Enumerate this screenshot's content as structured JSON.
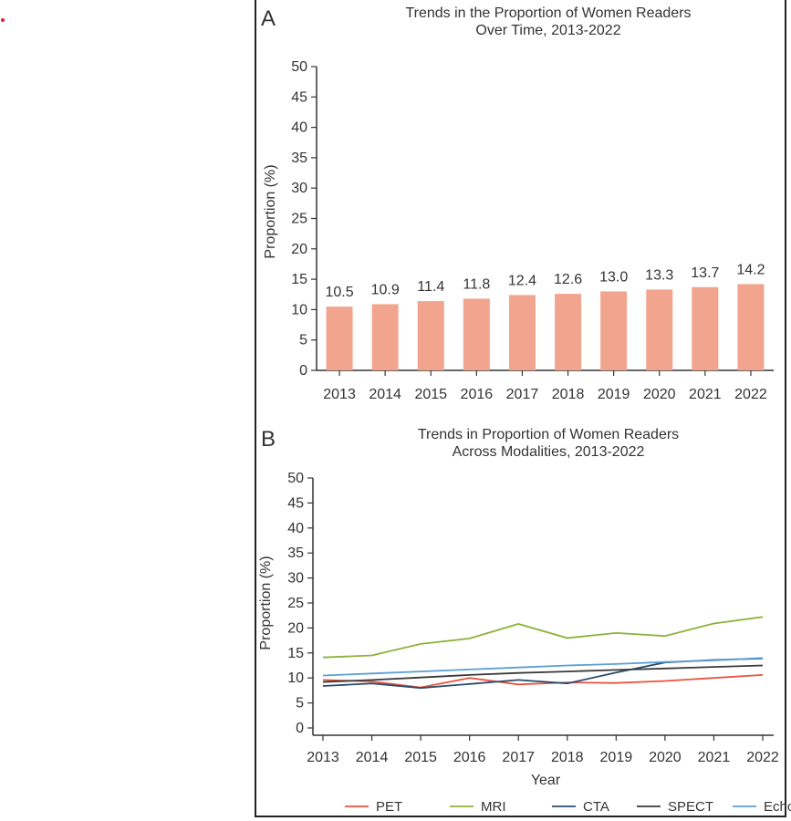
{
  "panel_a": {
    "letter": "A"
  },
  "panel_b": {
    "letter": "B"
  },
  "chart_data": [
    {
      "type": "bar",
      "title": "Trends in the Proportion of Women Readers",
      "subtitle": "Over Time, 2013-2022",
      "xlabel": "",
      "ylabel": "Proportion (%)",
      "ylim": [
        0,
        50
      ],
      "yticks": [
        0,
        5,
        10,
        15,
        20,
        25,
        30,
        35,
        40,
        45,
        50
      ],
      "categories": [
        "2013",
        "2014",
        "2015",
        "2016",
        "2017",
        "2018",
        "2019",
        "2020",
        "2021",
        "2022"
      ],
      "values": [
        10.5,
        10.9,
        11.4,
        11.8,
        12.4,
        12.6,
        13.0,
        13.3,
        13.7,
        14.2
      ],
      "labels": [
        "10.5",
        "10.9",
        "11.4",
        "11.8",
        "12.4",
        "12.6",
        "13.0",
        "13.3",
        "13.7",
        "14.2"
      ],
      "color": "#f2a58e"
    },
    {
      "type": "line",
      "title": "Trends in Proportion of Women Readers",
      "subtitle": "Across Modalities, 2013-2022",
      "xlabel": "Year",
      "ylabel": "Proportion (%)",
      "ylim": [
        0,
        50
      ],
      "yticks": [
        0,
        5,
        10,
        15,
        20,
        25,
        30,
        35,
        40,
        45,
        50
      ],
      "x": [
        "2013",
        "2014",
        "2015",
        "2016",
        "2017",
        "2018",
        "2019",
        "2020",
        "2021",
        "2022"
      ],
      "series": [
        {
          "name": "PET",
          "color": "#e8553e",
          "values": [
            9.6,
            9.3,
            8.1,
            10.0,
            8.7,
            9.1,
            9.0,
            9.4,
            10.0,
            10.6
          ]
        },
        {
          "name": "MRI",
          "color": "#8db33a",
          "values": [
            14.1,
            14.5,
            16.8,
            17.9,
            20.8,
            18.0,
            19.0,
            18.4,
            20.9,
            22.2
          ]
        },
        {
          "name": "CTA",
          "color": "#2b4c6f",
          "values": [
            8.4,
            8.9,
            8.0,
            8.8,
            9.6,
            8.9,
            11.1,
            13.1,
            13.6,
            13.9
          ]
        },
        {
          "name": "SPECT",
          "color": "#3a3a3a",
          "values": [
            9.2,
            9.6,
            10.1,
            10.6,
            11.0,
            11.3,
            11.6,
            11.9,
            12.2,
            12.5
          ]
        },
        {
          "name": "Echo",
          "color": "#5a9fd4",
          "values": [
            10.5,
            10.9,
            11.3,
            11.7,
            12.1,
            12.5,
            12.8,
            13.2,
            13.5,
            14.0
          ]
        }
      ],
      "legend_position": "bottom"
    }
  ]
}
